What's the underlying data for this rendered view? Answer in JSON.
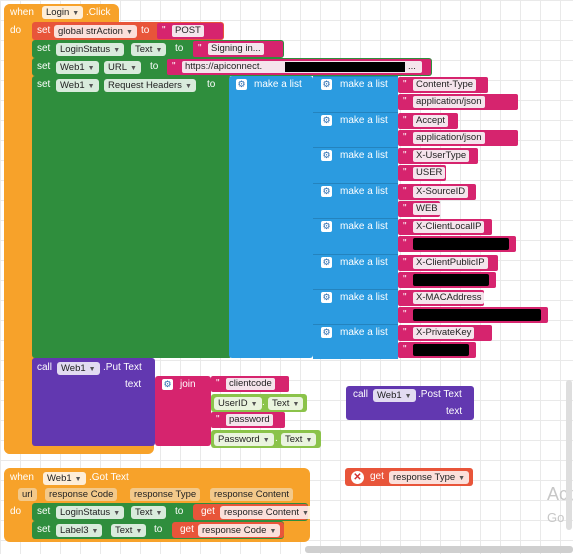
{
  "colors": {
    "event": "#F7A22A",
    "set_block": "#E8553A",
    "component_set": "#2F8E3D",
    "list": "#2B9BE0",
    "text": "#D6246E",
    "procedure": "#6238B0",
    "getter": "#8BC34A"
  },
  "login_event": {
    "when": "when",
    "component": "Login",
    "event": ".Click",
    "do": "do"
  },
  "set_action": {
    "set": "set",
    "variable": "global strAction",
    "to": "to",
    "value": "POST"
  },
  "set_status": {
    "set": "set",
    "component": "LoginStatus",
    "property": "Text",
    "to": "to",
    "value": "Signing in..."
  },
  "set_url": {
    "set": "set",
    "component": "Web1",
    "property": "URL",
    "to": "to",
    "value": "https://apiconnect.",
    "value_suffix": "..."
  },
  "set_headers": {
    "set": "set",
    "component": "Web1",
    "property": "Request Headers",
    "to": "to",
    "outer_list": "make a list",
    "pairs": [
      {
        "label": "make a list",
        "key": "Content-Type",
        "value": "application/json"
      },
      {
        "label": "make a list",
        "key": "Accept",
        "value": "application/json"
      },
      {
        "label": "make a list",
        "key": "X-UserType",
        "value": "USER"
      },
      {
        "label": "make a list",
        "key": "X-SourceID",
        "value": "WEB"
      },
      {
        "label": "make a list",
        "key": "X-ClientLocalIP",
        "value": ""
      },
      {
        "label": "make a list",
        "key": "X-ClientPublicIP",
        "value": ""
      },
      {
        "label": "make a list",
        "key": "X-MACAddress",
        "value": ""
      },
      {
        "label": "make a list",
        "key": "X-PrivateKey",
        "value": ""
      }
    ]
  },
  "put_call": {
    "call": "call",
    "component": "Web1",
    "method": ".Put Text",
    "param": "text",
    "join": "join",
    "items": [
      {
        "kind": "text",
        "value": "clientcode"
      },
      {
        "kind": "getter",
        "component": "UserID",
        "property": "Text"
      },
      {
        "kind": "text",
        "value": "password"
      },
      {
        "kind": "getter",
        "component": "Password",
        "property": "Text"
      }
    ]
  },
  "post_call": {
    "call": "call",
    "component": "Web1",
    "method": ".Post Text",
    "param": "text"
  },
  "got_event": {
    "when": "when",
    "component": "Web1",
    "event": ".Got Text",
    "params": [
      "url",
      "response Code",
      "response Type",
      "response Content"
    ],
    "do": "do"
  },
  "got_set1": {
    "set": "set",
    "component": "LoginStatus",
    "property": "Text",
    "to": "to",
    "get": "get",
    "value": "response Content"
  },
  "got_set2": {
    "set": "set",
    "component": "Label3",
    "property": "Text",
    "to": "to",
    "get": "get",
    "value": "response Code"
  },
  "error_getter": {
    "get": "get",
    "value": "response Type",
    "error_icon": "error-x-icon"
  },
  "overlay": {
    "line1": "Act",
    "line2": "Go t"
  }
}
